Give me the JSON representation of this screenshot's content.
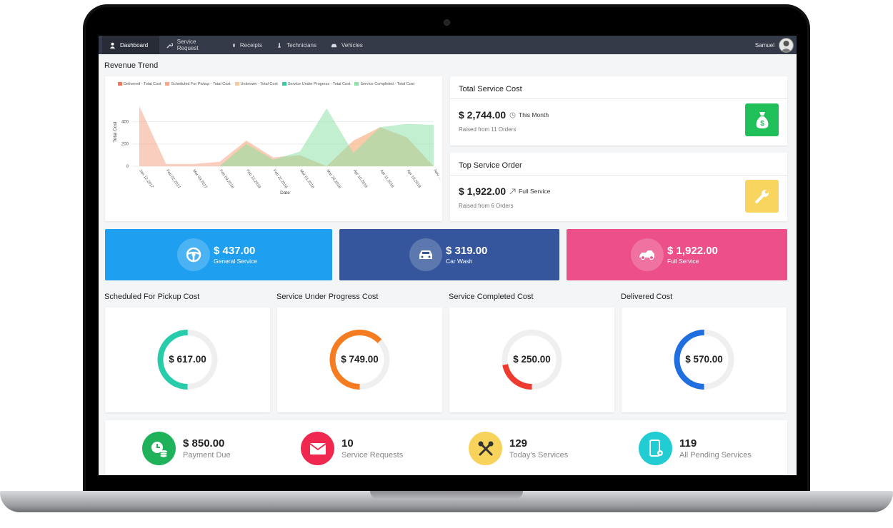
{
  "nav": {
    "items": [
      {
        "label": "Dashboard",
        "icon": "user-icon"
      },
      {
        "label": "Service Request",
        "icon": "wrench-icon"
      },
      {
        "label": "Receipts",
        "icon": "receipt-icon"
      },
      {
        "label": "Technicians",
        "icon": "technician-icon"
      },
      {
        "label": "Vehicles",
        "icon": "car-icon"
      }
    ],
    "user": "Samuel"
  },
  "revenue": {
    "title": "Revenue Trend",
    "chart_data": {
      "type": "area",
      "xlabel": "Date",
      "ylabel": "Total Cost",
      "y_ticks": [
        "0",
        "200",
        "400"
      ],
      "ylim": [
        0,
        550
      ],
      "categories": [
        "Jan 12,2017",
        "Feb 02,2017",
        "Mar 09,2017",
        "Feb 09,2018",
        "Feb 15,2018",
        "Feb 22,2018",
        "Mar 01,2018",
        "Mar 28,2018",
        "Apr 10,2018",
        "Apr 11,2018",
        "Apr 18,2018",
        "Nov ..."
      ],
      "series": [
        {
          "name": "Delivered - Total Cost",
          "color": "#f0775a",
          "values": [
            0,
            0,
            0,
            0,
            0,
            0,
            0,
            0,
            0,
            0,
            0,
            0
          ]
        },
        {
          "name": "Scheduled For Pickup - Total Cost",
          "color": "#f6a58a",
          "values": [
            540,
            20,
            20,
            40,
            230,
            80,
            100,
            0,
            230,
            350,
            260,
            0
          ]
        },
        {
          "name": "Unknown - Total Cost",
          "color": "#f7c89b",
          "values": [
            0,
            0,
            0,
            0,
            220,
            60,
            100,
            0,
            220,
            350,
            250,
            0
          ]
        },
        {
          "name": "Service Under Progress - Total Cost",
          "color": "#3cc9a3",
          "values": [
            0,
            0,
            0,
            0,
            0,
            0,
            0,
            0,
            0,
            0,
            0,
            0
          ]
        },
        {
          "name": "Service Completed - Total Cost",
          "color": "#8ee2a8",
          "values": [
            0,
            0,
            0,
            0,
            200,
            60,
            130,
            520,
            120,
            350,
            380,
            370
          ]
        }
      ]
    }
  },
  "total_service_cost": {
    "title": "Total Service Cost",
    "value": "$ 2,744.00",
    "note": "This Month",
    "sub": "Raised from 11 Orders",
    "color": "#1fbf5a"
  },
  "top_service_order": {
    "title": "Top Service Order",
    "value": "$ 1,922.00",
    "note": "Full Service",
    "sub": "Raised from 6 Orders",
    "color": "#f7d55f"
  },
  "tiles": [
    {
      "value": "$ 437.00",
      "label": "General Service",
      "color": "#1f9ff0",
      "icon": "steering-wheel-icon"
    },
    {
      "value": "$ 319.00",
      "label": "Car Wash",
      "color": "#35569c",
      "icon": "car-icon"
    },
    {
      "value": "$ 1,922.00",
      "label": "Full Service",
      "color": "#ec4f8a",
      "icon": "car-side-icon"
    }
  ],
  "donuts": [
    {
      "title": "Scheduled For Pickup Cost",
      "value": "$ 617.00",
      "color": "#27cdab",
      "fraction": 0.5
    },
    {
      "title": "Service Under Progress Cost",
      "value": "$ 749.00",
      "color": "#f57c20",
      "fraction": 0.63
    },
    {
      "title": "Service Completed Cost",
      "value": "$ 250.00",
      "color": "#ef3b2f",
      "fraction": 0.22
    },
    {
      "title": "Delivered Cost",
      "value": "$ 570.00",
      "color": "#1f6fe0",
      "fraction": 0.5
    }
  ],
  "stats": [
    {
      "value": "$ 850.00",
      "label": "Payment Due",
      "color": "#1fb25a",
      "icon": "payment-clock-icon"
    },
    {
      "value": "10",
      "label": "Service Requests",
      "color": "#f0284f",
      "icon": "mail-icon"
    },
    {
      "value": "129",
      "label": "Today's Services",
      "color": "#f7d35b",
      "icon": "tools-icon"
    },
    {
      "value": "119",
      "label": "All Pending Services",
      "color": "#21cdd2",
      "icon": "mobile-settings-icon"
    }
  ]
}
